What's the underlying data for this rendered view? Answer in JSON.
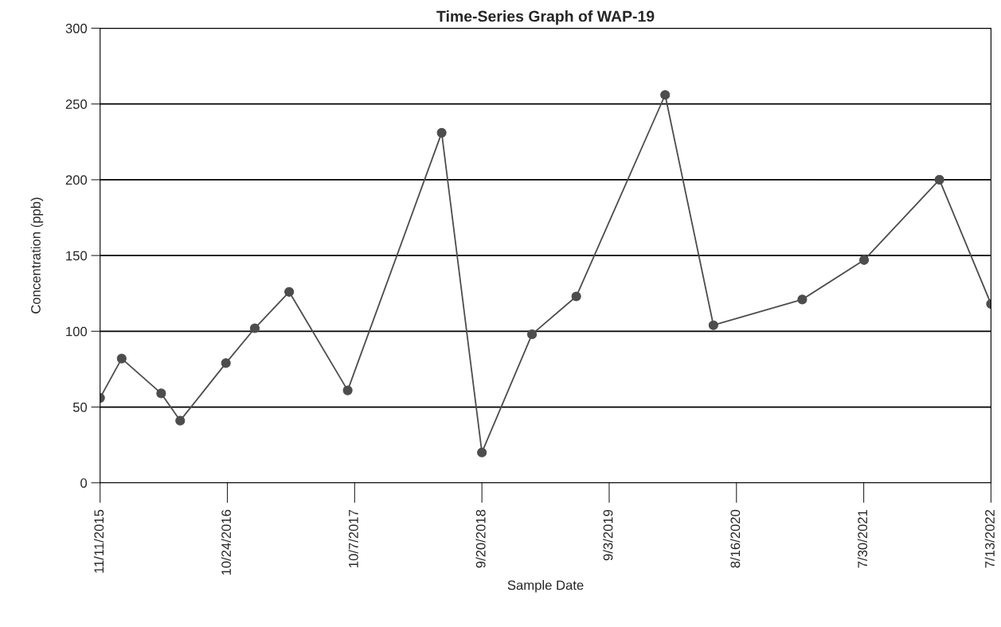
{
  "chart_data": {
    "type": "line",
    "title": "Time-Series Graph of WAP-19",
    "xlabel": "Sample Date",
    "ylabel": "Concentration (ppb)",
    "x": [
      "2015-11-11",
      "2016-01-09",
      "2016-04-26",
      "2016-06-17",
      "2016-10-20",
      "2017-01-07",
      "2017-04-11",
      "2017-09-18",
      "2018-06-02",
      "2018-09-20",
      "2019-02-04",
      "2019-06-05",
      "2020-02-03",
      "2020-06-14",
      "2021-02-12",
      "2021-07-31",
      "2022-02-22",
      "2022-07-13"
    ],
    "series": [
      {
        "color": "#4d4d4d",
        "values": [
          56,
          82,
          59,
          41,
          79,
          102,
          126,
          61,
          231,
          20,
          98,
          123,
          256,
          104,
          121,
          147,
          200,
          118
        ]
      }
    ],
    "xlim": [
      "2015-11-11",
      "2022-07-13"
    ],
    "xticks": [
      {
        "value": "2015-11-11",
        "label": "11/11/2015"
      },
      {
        "value": "2016-10-24",
        "label": "10/24/2016"
      },
      {
        "value": "2017-10-07",
        "label": "10/7/2017"
      },
      {
        "value": "2018-09-20",
        "label": "9/20/2018"
      },
      {
        "value": "2019-09-03",
        "label": "9/3/2019"
      },
      {
        "value": "2020-08-16",
        "label": "8/16/2020"
      },
      {
        "value": "2021-07-30",
        "label": "7/30/2021"
      },
      {
        "value": "2022-07-13",
        "label": "7/13/2022"
      }
    ],
    "ylim": [
      0,
      300
    ],
    "yticks": [
      0,
      50,
      100,
      150,
      200,
      250,
      300
    ],
    "grid": "y",
    "marker": "circle",
    "line_style": "solid",
    "legend": false
  }
}
